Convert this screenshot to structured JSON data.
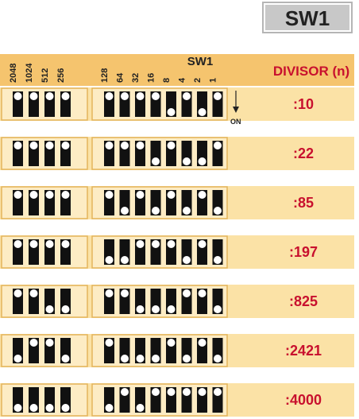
{
  "title": "SW1",
  "header": {
    "switch_labels": [
      "2048",
      "1024",
      "512",
      "256",
      "128",
      "64",
      "32",
      "16",
      "8",
      "4",
      "2",
      "1"
    ],
    "group_label": "SW1",
    "divisor_label": "DIVISOR (n)"
  },
  "on_label": "ON",
  "rows": [
    {
      "divisor": ":10",
      "switches": [
        0,
        0,
        0,
        0,
        0,
        0,
        0,
        0,
        1,
        0,
        1,
        0
      ]
    },
    {
      "divisor": ":22",
      "switches": [
        0,
        0,
        0,
        0,
        0,
        0,
        0,
        1,
        0,
        1,
        1,
        0
      ]
    },
    {
      "divisor": ":85",
      "switches": [
        0,
        0,
        0,
        0,
        0,
        1,
        0,
        1,
        0,
        1,
        0,
        1
      ]
    },
    {
      "divisor": ":197",
      "switches": [
        0,
        0,
        0,
        0,
        1,
        1,
        0,
        0,
        0,
        1,
        0,
        1
      ]
    },
    {
      "divisor": ":825",
      "switches": [
        0,
        0,
        1,
        1,
        0,
        0,
        1,
        1,
        1,
        0,
        0,
        1
      ]
    },
    {
      "divisor": ":2421",
      "switches": [
        1,
        0,
        0,
        1,
        0,
        1,
        1,
        1,
        0,
        1,
        0,
        1
      ]
    },
    {
      "divisor": ":4000",
      "switches": [
        1,
        1,
        1,
        1,
        1,
        0,
        1,
        0,
        0,
        0,
        0,
        0
      ]
    }
  ]
}
